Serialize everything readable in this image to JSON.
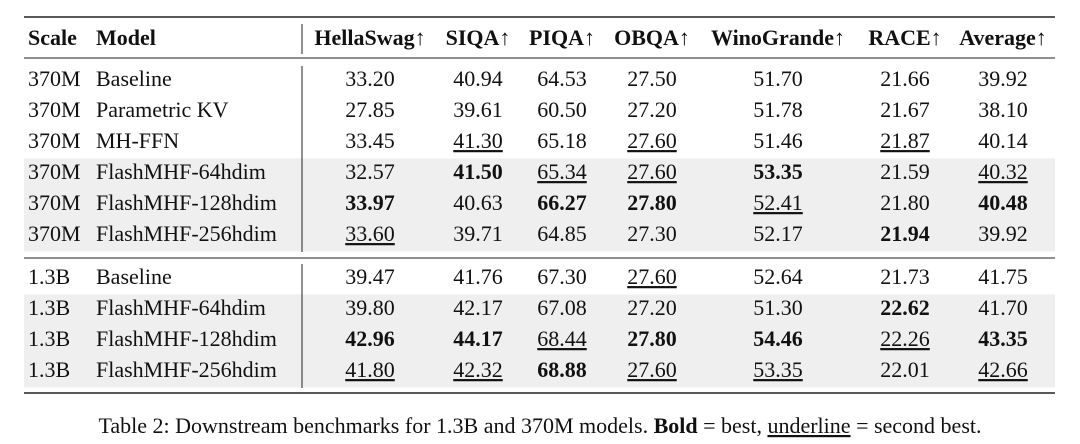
{
  "table": {
    "header": [
      "Scale",
      "Model",
      "HellaSwag↑",
      "SIQA↑",
      "PIQA↑",
      "OBQA↑",
      "WinoGrande↑",
      "RACE↑",
      "Average↑"
    ],
    "groups": [
      {
        "rows": [
          {
            "cells": [
              "370M",
              "Baseline",
              "33.20",
              "40.94",
              "64.53",
              "27.50",
              "51.70",
              "21.66",
              "39.92"
            ]
          },
          {
            "cells": [
              "370M",
              "Parametric KV",
              "27.85",
              "39.61",
              "60.50",
              "27.20",
              "51.78",
              "21.67",
              "38.10"
            ]
          },
          {
            "cells": [
              "370M",
              "MH-FFN",
              "33.45",
              {
                "text": "41.30",
                "style": "underline"
              },
              "65.18",
              {
                "text": "27.60",
                "style": "underline"
              },
              "51.46",
              {
                "text": "21.87",
                "style": "underline"
              },
              "40.14"
            ]
          },
          {
            "shaded": true,
            "cells": [
              "370M",
              "FlashMHF-64hdim",
              "32.57",
              {
                "text": "41.50",
                "style": "bold"
              },
              {
                "text": "65.34",
                "style": "underline"
              },
              {
                "text": "27.60",
                "style": "underline"
              },
              {
                "text": "53.35",
                "style": "bold"
              },
              "21.59",
              {
                "text": "40.32",
                "style": "underline"
              }
            ]
          },
          {
            "shaded": true,
            "cells": [
              "370M",
              "FlashMHF-128hdim",
              {
                "text": "33.97",
                "style": "bold"
              },
              "40.63",
              {
                "text": "66.27",
                "style": "bold"
              },
              {
                "text": "27.80",
                "style": "bold"
              },
              {
                "text": "52.41",
                "style": "underline"
              },
              "21.80",
              {
                "text": "40.48",
                "style": "bold"
              }
            ]
          },
          {
            "shaded": true,
            "cells": [
              "370M",
              "FlashMHF-256hdim",
              {
                "text": "33.60",
                "style": "underline"
              },
              "39.71",
              "64.85",
              "27.30",
              "52.17",
              {
                "text": "21.94",
                "style": "bold"
              },
              "39.92"
            ]
          }
        ]
      },
      {
        "rows": [
          {
            "cells": [
              "1.3B",
              "Baseline",
              "39.47",
              "41.76",
              "67.30",
              {
                "text": "27.60",
                "style": "underline"
              },
              "52.64",
              "21.73",
              "41.75"
            ]
          },
          {
            "shaded": true,
            "cells": [
              "1.3B",
              "FlashMHF-64hdim",
              "39.80",
              "42.17",
              "67.08",
              "27.20",
              "51.30",
              {
                "text": "22.62",
                "style": "bold"
              },
              "41.70"
            ]
          },
          {
            "shaded": true,
            "cells": [
              "1.3B",
              "FlashMHF-128hdim",
              {
                "text": "42.96",
                "style": "bold"
              },
              {
                "text": "44.17",
                "style": "bold"
              },
              {
                "text": "68.44",
                "style": "underline"
              },
              {
                "text": "27.80",
                "style": "bold"
              },
              {
                "text": "54.46",
                "style": "bold"
              },
              {
                "text": "22.26",
                "style": "underline"
              },
              {
                "text": "43.35",
                "style": "bold"
              }
            ]
          },
          {
            "shaded": true,
            "cells": [
              "1.3B",
              "FlashMHF-256hdim",
              {
                "text": "41.80",
                "style": "underline"
              },
              {
                "text": "42.32",
                "style": "underline"
              },
              {
                "text": "68.88",
                "style": "bold"
              },
              {
                "text": "27.60",
                "style": "underline"
              },
              {
                "text": "53.35",
                "style": "underline"
              },
              "22.01",
              {
                "text": "42.66",
                "style": "underline"
              }
            ]
          }
        ]
      }
    ]
  },
  "caption": [
    {
      "text": "Table 2: Downstream benchmarks for 1.3B and 370M models. "
    },
    {
      "text": "Bold",
      "style": "bold"
    },
    {
      "text": " = best, "
    },
    {
      "text": "underline",
      "style": "underline"
    },
    {
      "text": " = second best."
    }
  ]
}
